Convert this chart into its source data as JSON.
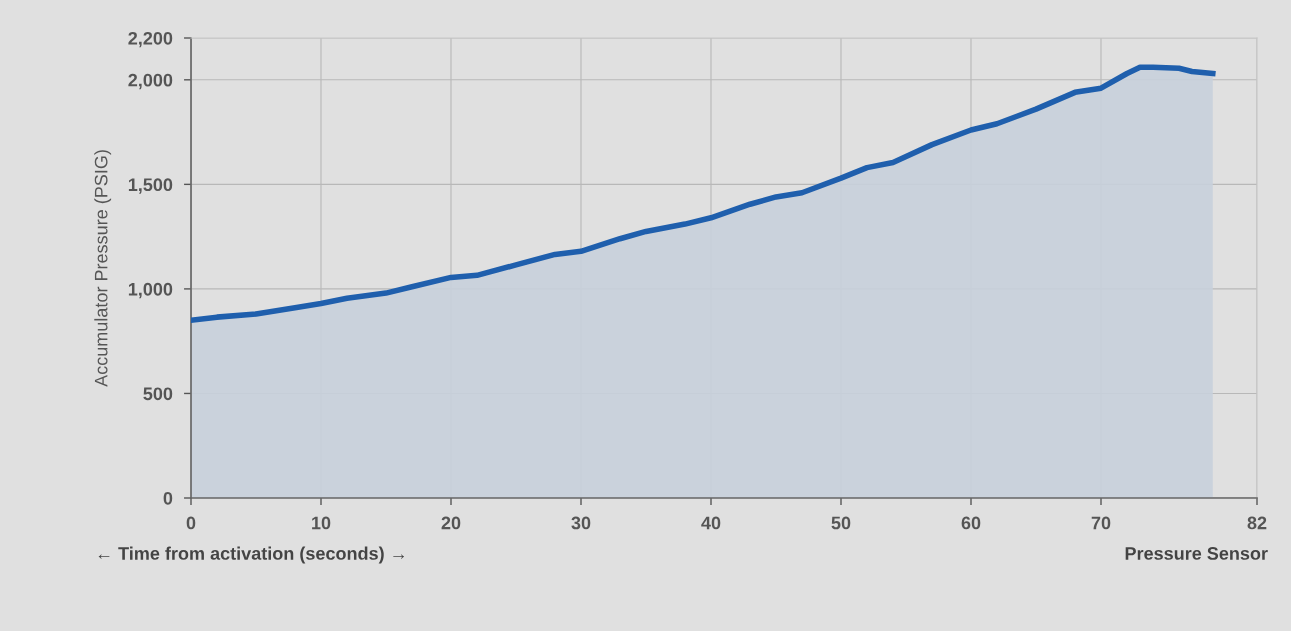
{
  "chart_data": {
    "type": "area",
    "ylabel": "Accumulator Pressure (PSIG)",
    "annotations": [
      "← Time from activation (seconds) →",
      "Pressure Sensor"
    ],
    "x": [
      0,
      2,
      5,
      8,
      10,
      12,
      15,
      17,
      20,
      22,
      25,
      28,
      30,
      33,
      35,
      38,
      40,
      43,
      45,
      47,
      50,
      52,
      54,
      57,
      60,
      62,
      65,
      68,
      70,
      72,
      73,
      74,
      76,
      77,
      78.6
    ],
    "series": [
      {
        "color": "#1f5fad",
        "values": [
          850,
          865,
          880,
          910,
          930,
          955,
          980,
          1010,
          1055,
          1065,
          1115,
          1165,
          1180,
          1240,
          1275,
          1310,
          1340,
          1405,
          1440,
          1460,
          1530,
          1580,
          1605,
          1690,
          1760,
          1790,
          1860,
          1940,
          1960,
          2030,
          2060,
          2060,
          2055,
          2040,
          2030
        ]
      }
    ],
    "xlim": [
      0,
      82
    ],
    "xticks": [
      0,
      10,
      20,
      30,
      40,
      50,
      60,
      70,
      82
    ],
    "ylim": [
      0,
      2200
    ],
    "yticks": [
      {
        "value": 0,
        "label": "0"
      },
      {
        "value": 500,
        "label": "500"
      },
      {
        "value": 1000,
        "label": "1,000"
      },
      {
        "value": 1500,
        "label": "1,500"
      },
      {
        "value": 2000,
        "label": "2,000"
      },
      {
        "value": 2200,
        "label": "2,200"
      }
    ],
    "grid": true,
    "legend": false,
    "marker": "none",
    "line_style": "solid"
  }
}
